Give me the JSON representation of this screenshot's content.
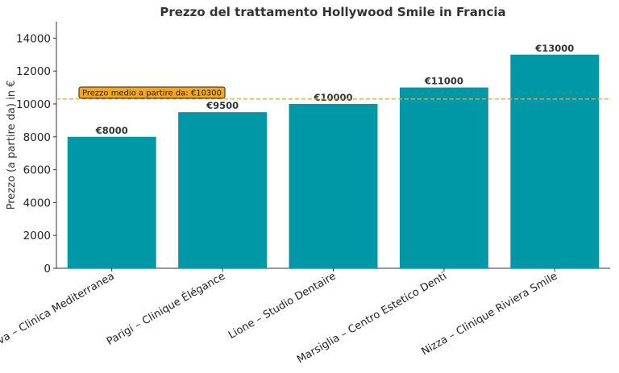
{
  "chart_data": {
    "type": "bar",
    "title": "Prezzo del trattamento Hollywood Smile in Francia",
    "xlabel": "",
    "ylabel": "Prezzo (a partire da) in €",
    "categories": [
      "Genova – Clinica Mediterranea",
      "Parigi – Clinique Élégance",
      "Lione – Studio Dentaire",
      "Marsiglia – Centro Estetico Denti",
      "Nizza – Clinique Riviera Smile"
    ],
    "values": [
      8000,
      9500,
      10000,
      11000,
      13000
    ],
    "value_labels": [
      "€8000",
      "€9500",
      "€10000",
      "€11000",
      "€13000"
    ],
    "yticks": [
      0,
      2000,
      4000,
      6000,
      8000,
      10000,
      12000,
      14000
    ],
    "ytick_labels": [
      "0",
      "2000",
      "4000",
      "6000",
      "8000",
      "10000",
      "12000",
      "14000"
    ],
    "ylim": [
      0,
      15000
    ],
    "grid": false,
    "bar_color": "#0097a7",
    "average": {
      "value": 10300,
      "label": "Prezzo medio a partire da: €10300",
      "line_color": "#f0a830",
      "box_color": "#f5a623"
    }
  }
}
